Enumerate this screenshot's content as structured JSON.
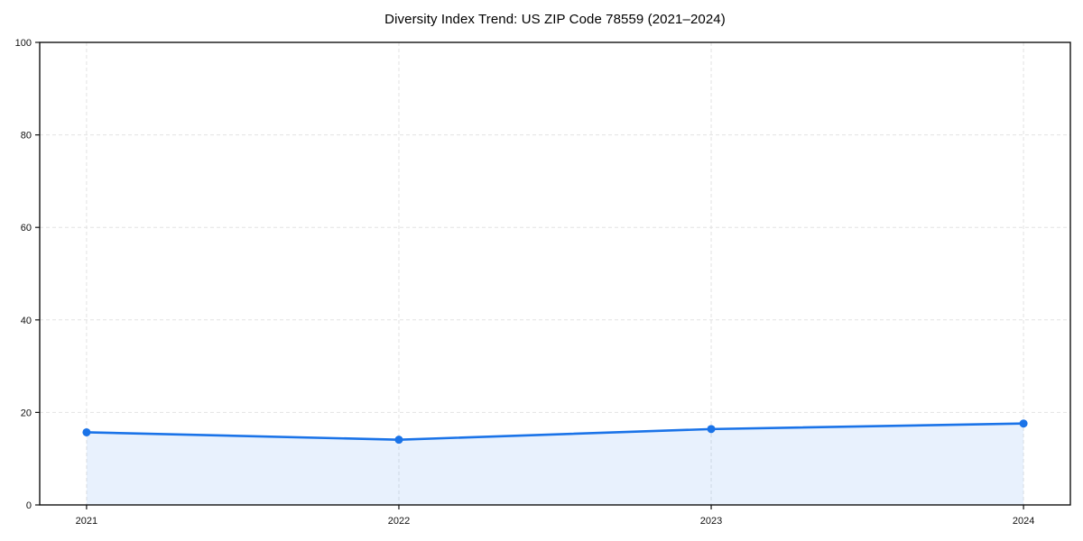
{
  "chart_data": {
    "type": "area",
    "title": "Diversity Index Trend: US ZIP Code 78559 (2021–2024)",
    "categories": [
      "2021",
      "2022",
      "2023",
      "2024"
    ],
    "series": [
      {
        "name": "Diversity Index",
        "values": [
          15.7,
          14.1,
          16.4,
          17.6
        ]
      }
    ],
    "xlabel": "",
    "ylabel": "",
    "ylim": [
      0,
      100
    ],
    "yticks": [
      0,
      20,
      40,
      60,
      80,
      100
    ],
    "grid": true,
    "grid_style": "dashed",
    "legend_position": "none",
    "line_color": "#1a73e8",
    "marker_color": "#1a73e8",
    "fill_color": "rgba(26,115,232,0.10)",
    "grid_color": "#e2e2e2",
    "spine_color": "#111111",
    "text_color": "#111111"
  }
}
